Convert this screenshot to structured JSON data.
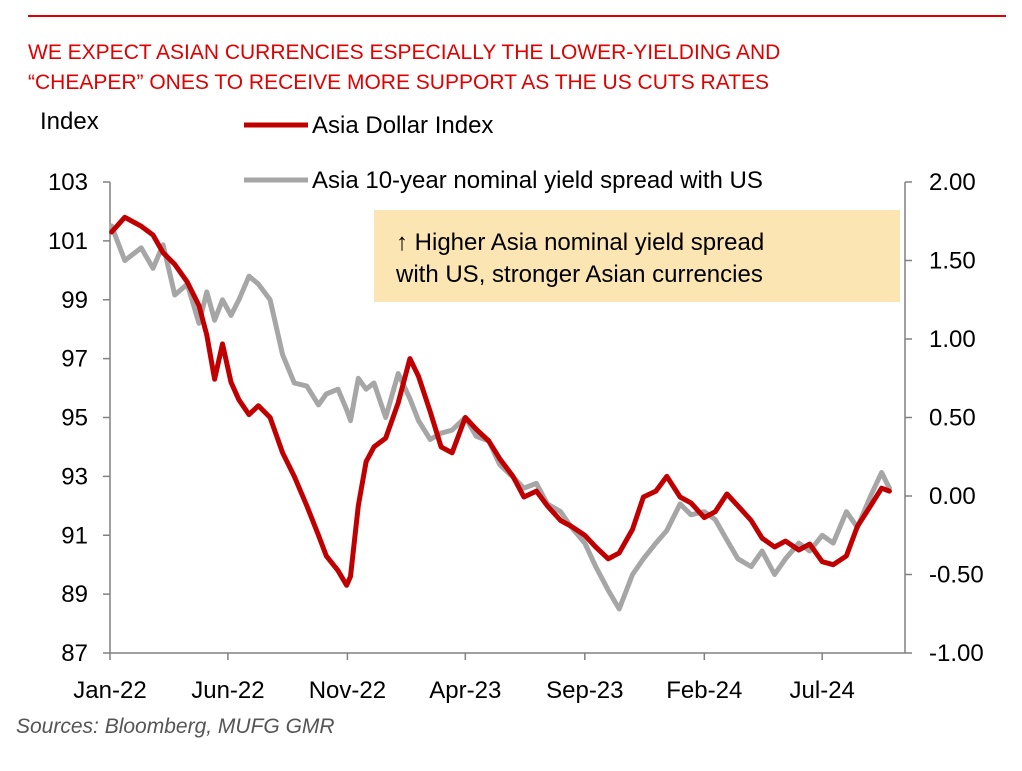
{
  "chart_data": {
    "type": "line",
    "title": "WE EXPECT ASIAN CURRENCIES ESPECIALLY THE LOWER-YIELDING AND “CHEAPER” ONES TO RECEIVE MORE SUPPORT AS THE US CUTS RATES",
    "title_lines": [
      "WE EXPECT ASIAN CURRENCIES ESPECIALLY THE LOWER-YIELDING AND",
      "“CHEAPER” ONES TO RECEIVE MORE SUPPORT AS THE US CUTS RATES"
    ],
    "ylabel": "Index",
    "y_left": {
      "range": [
        87,
        103
      ],
      "ticks": [
        103,
        101,
        99,
        97,
        95,
        93,
        91,
        89,
        87
      ]
    },
    "y_right": {
      "range": [
        -1.0,
        2.0
      ],
      "ticks": [
        "2.00",
        "1.50",
        "1.00",
        "0.50",
        "0.00",
        "-0.50",
        "-1.00"
      ]
    },
    "x_ticks": [
      "Jan-22",
      "Jun-22",
      "Nov-22",
      "Apr-23",
      "Sep-23",
      "Feb-24",
      "Jul-24"
    ],
    "annotation_lines": [
      "↑ Higher Asia nominal yield spread",
      "with US, stronger Asian currencies"
    ],
    "source": "Sources:  Bloomberg, MUFG GMR",
    "legend_position": "top",
    "series": [
      {
        "name": "Asia Dollar Index",
        "axis": "left",
        "color": "#c00000",
        "x": [
          "2022-01-03",
          "2022-01-20",
          "2022-02-10",
          "2022-02-25",
          "2022-03-10",
          "2022-03-25",
          "2022-04-10",
          "2022-04-25",
          "2022-05-05",
          "2022-05-15",
          "2022-05-25",
          "2022-06-05",
          "2022-06-15",
          "2022-06-28",
          "2022-07-10",
          "2022-07-25",
          "2022-08-10",
          "2022-08-25",
          "2022-09-10",
          "2022-09-25",
          "2022-10-05",
          "2022-10-20",
          "2022-10-31",
          "2022-11-05",
          "2022-11-15",
          "2022-11-25",
          "2022-12-05",
          "2022-12-20",
          "2023-01-05",
          "2023-01-20",
          "2023-01-31",
          "2023-02-15",
          "2023-03-01",
          "2023-03-15",
          "2023-04-01",
          "2023-04-15",
          "2023-05-01",
          "2023-05-15",
          "2023-06-01",
          "2023-06-15",
          "2023-07-01",
          "2023-07-15",
          "2023-08-01",
          "2023-08-15",
          "2023-09-01",
          "2023-09-15",
          "2023-10-01",
          "2023-10-15",
          "2023-11-01",
          "2023-11-15",
          "2023-12-01",
          "2023-12-15",
          "2024-01-01",
          "2024-01-15",
          "2024-02-01",
          "2024-02-15",
          "2024-03-01",
          "2024-03-15",
          "2024-04-01",
          "2024-04-15",
          "2024-05-01",
          "2024-05-15",
          "2024-06-01",
          "2024-06-15",
          "2024-07-01",
          "2024-07-15",
          "2024-08-01",
          "2024-08-15",
          "2024-09-01",
          "2024-09-15",
          "2024-09-25"
        ],
        "values": [
          101.3,
          101.8,
          101.5,
          101.2,
          100.6,
          100.2,
          99.6,
          98.8,
          97.8,
          96.3,
          97.5,
          96.2,
          95.6,
          95.1,
          95.4,
          95.0,
          93.8,
          93.0,
          92.0,
          91.0,
          90.3,
          89.8,
          89.3,
          89.6,
          92.0,
          93.5,
          94.0,
          94.3,
          95.5,
          97.0,
          96.4,
          95.2,
          94.0,
          93.8,
          95.0,
          94.6,
          94.2,
          93.6,
          93.0,
          92.3,
          92.5,
          92.0,
          91.5,
          91.3,
          91.0,
          90.6,
          90.2,
          90.4,
          91.2,
          92.3,
          92.5,
          93.0,
          92.3,
          92.1,
          91.6,
          91.8,
          92.4,
          92.0,
          91.5,
          90.9,
          90.6,
          90.8,
          90.5,
          90.7,
          90.1,
          90.0,
          90.3,
          91.3,
          92.0,
          92.6,
          92.5
        ]
      },
      {
        "name": "Asia 10-year nominal yield spread with US",
        "axis": "right",
        "color": "#a6a6a6",
        "x": [
          "2022-01-03",
          "2022-01-20",
          "2022-02-10",
          "2022-02-25",
          "2022-03-10",
          "2022-03-25",
          "2022-04-10",
          "2022-04-25",
          "2022-05-05",
          "2022-05-15",
          "2022-05-25",
          "2022-06-05",
          "2022-06-15",
          "2022-06-28",
          "2022-07-10",
          "2022-07-25",
          "2022-08-10",
          "2022-08-25",
          "2022-09-10",
          "2022-09-25",
          "2022-10-05",
          "2022-10-20",
          "2022-10-31",
          "2022-11-05",
          "2022-11-15",
          "2022-11-25",
          "2022-12-05",
          "2022-12-20",
          "2023-01-05",
          "2023-01-20",
          "2023-01-31",
          "2023-02-15",
          "2023-03-01",
          "2023-03-15",
          "2023-04-01",
          "2023-04-15",
          "2023-05-01",
          "2023-05-15",
          "2023-06-01",
          "2023-06-15",
          "2023-07-01",
          "2023-07-15",
          "2023-08-01",
          "2023-08-15",
          "2023-09-01",
          "2023-09-15",
          "2023-10-01",
          "2023-10-15",
          "2023-11-01",
          "2023-11-15",
          "2023-12-01",
          "2023-12-15",
          "2024-01-01",
          "2024-01-15",
          "2024-02-01",
          "2024-02-15",
          "2024-03-01",
          "2024-03-15",
          "2024-04-01",
          "2024-04-15",
          "2024-05-01",
          "2024-05-15",
          "2024-06-01",
          "2024-06-15",
          "2024-07-01",
          "2024-07-15",
          "2024-08-01",
          "2024-08-15",
          "2024-09-01",
          "2024-09-15",
          "2024-09-25"
        ],
        "values": [
          1.72,
          1.5,
          1.58,
          1.45,
          1.6,
          1.28,
          1.35,
          1.1,
          1.3,
          1.12,
          1.25,
          1.15,
          1.25,
          1.4,
          1.35,
          1.25,
          0.9,
          0.72,
          0.7,
          0.58,
          0.65,
          0.68,
          0.55,
          0.48,
          0.75,
          0.68,
          0.72,
          0.5,
          0.78,
          0.62,
          0.48,
          0.36,
          0.4,
          0.42,
          0.5,
          0.38,
          0.35,
          0.2,
          0.12,
          0.05,
          0.08,
          -0.05,
          -0.1,
          -0.2,
          -0.3,
          -0.45,
          -0.6,
          -0.72,
          -0.5,
          -0.4,
          -0.3,
          -0.22,
          -0.05,
          -0.12,
          -0.1,
          -0.15,
          -0.28,
          -0.4,
          -0.45,
          -0.35,
          -0.5,
          -0.4,
          -0.3,
          -0.35,
          -0.25,
          -0.3,
          -0.1,
          -0.2,
          0.0,
          0.15,
          0.05
        ]
      }
    ]
  }
}
